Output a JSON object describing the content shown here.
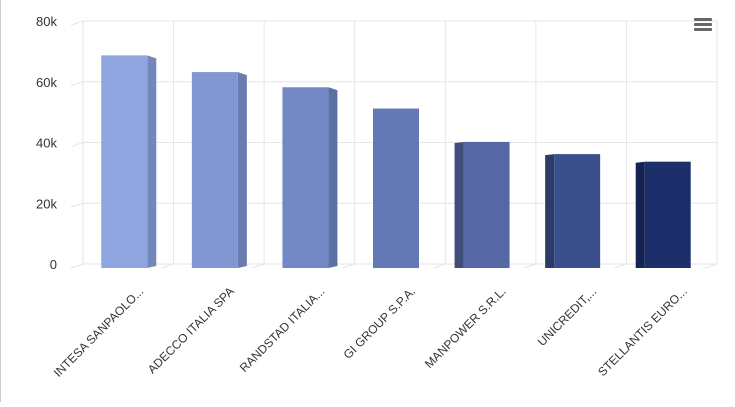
{
  "chart_data": {
    "type": "bar",
    "title": "",
    "xlabel": "",
    "ylabel": "",
    "categories": [
      "INTESA SANPAOLO...",
      "ADECCO ITALIA SPA",
      "RANDSTAD ITALIA...",
      "GI GROUP S.P.A.",
      "MANPOWER S.R.L.",
      "UNICREDIT,...",
      "STELLANTIS EURO..."
    ],
    "values": [
      70000,
      64500,
      59500,
      52500,
      41500,
      37500,
      35000
    ],
    "ylim": [
      0,
      80000
    ],
    "yticks": [
      0,
      20000,
      40000,
      60000,
      80000
    ],
    "ytick_labels": [
      "0",
      "20k",
      "40k",
      "60k",
      "80k"
    ],
    "grid": true,
    "legend": "none",
    "colors": [
      "#8fa5e0",
      "#8197d3",
      "#7289c6",
      "#6478b5",
      "#5567a5",
      "#3a4f8b",
      "#1c2f6b"
    ],
    "three_d": true
  },
  "menu_icon": "hamburger-menu-icon"
}
